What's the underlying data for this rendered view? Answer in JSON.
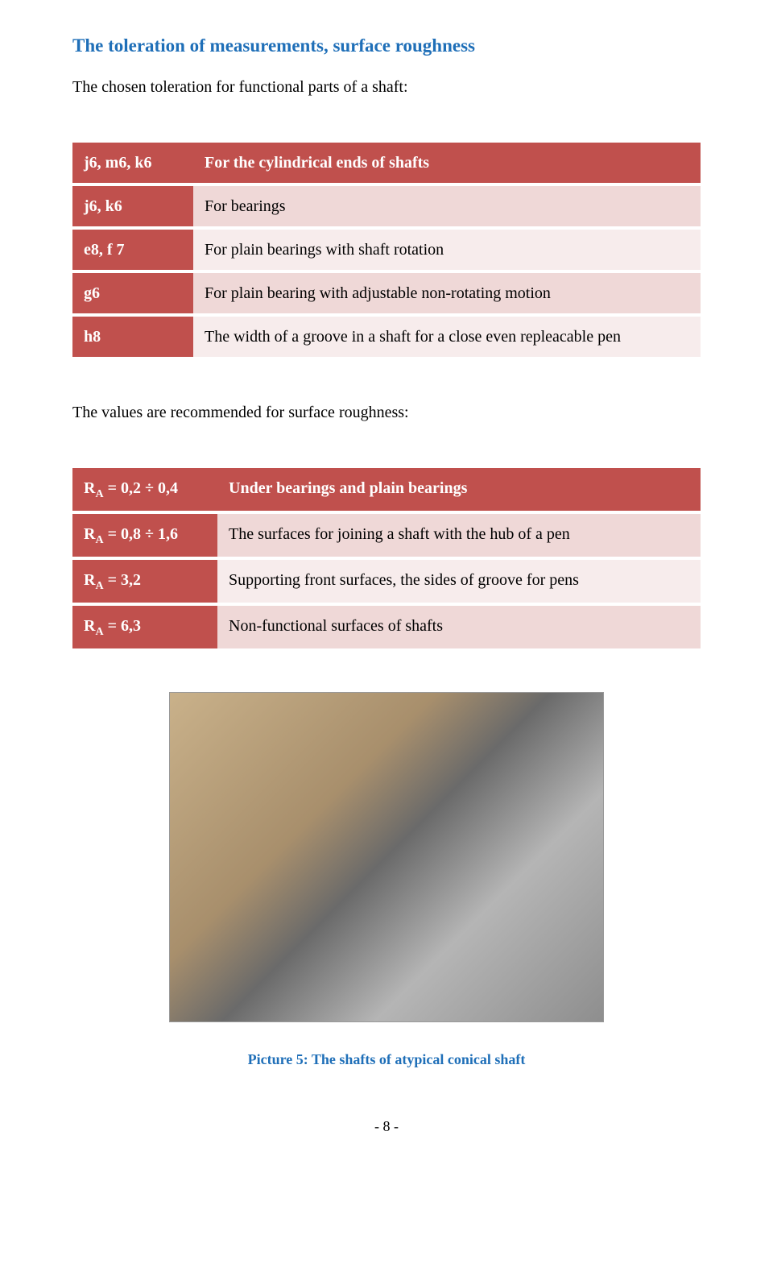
{
  "heading": "The toleration of measurements, surface roughness",
  "intro": "The chosen toleration for functional parts of a shaft:",
  "table1": {
    "header_bg": "#c0504d",
    "row_bg_light": "#efd8d7",
    "row_bg_lighter": "#f7ecec",
    "text_color": "#000000",
    "code_color": "#ffffff",
    "rows": [
      {
        "code": "j6, m6, k6",
        "desc": "For the cylindrical ends of shafts",
        "bold_desc": true,
        "bg": "#c0504d",
        "desc_bg": "#c0504d",
        "desc_color": "#ffffff"
      },
      {
        "code": "j6, k6",
        "desc": "For bearings",
        "bg": "#c0504d",
        "desc_bg": "#efd8d7",
        "desc_color": "#000000"
      },
      {
        "code": "e8, f 7",
        "desc": "For plain bearings with shaft rotation",
        "bg": "#c0504d",
        "desc_bg": "#f7ecec",
        "desc_color": "#000000"
      },
      {
        "code": "g6",
        "desc": "For plain bearing with adjustable non-rotating motion",
        "bg": "#c0504d",
        "desc_bg": "#efd8d7",
        "desc_color": "#000000"
      },
      {
        "code": "h8",
        "desc": "The width of a groove in a shaft for a close even repleacable pen",
        "bg": "#c0504d",
        "desc_bg": "#f7ecec",
        "desc_color": "#000000"
      }
    ]
  },
  "mid_text": "The values are recommended for surface roughness:",
  "table2": {
    "header_bg": "#c0504d",
    "rows": [
      {
        "ra_pre": "R",
        "ra_sub": "A",
        "ra_post": " = 0,2 ÷ 0,4",
        "desc": "Under bearings and plain bearings",
        "bold_desc": true,
        "bg": "#c0504d",
        "desc_bg": "#c0504d",
        "desc_color": "#ffffff"
      },
      {
        "ra_pre": "R",
        "ra_sub": "A",
        "ra_post": " = 0,8 ÷ 1,6",
        "desc": "The surfaces for joining a shaft with the hub of a pen",
        "bg": "#c0504d",
        "desc_bg": "#efd8d7",
        "desc_color": "#000000"
      },
      {
        "ra_pre": "R",
        "ra_sub": "A",
        "ra_post": " = 3,2",
        "desc": "Supporting front surfaces, the sides of groove for pens",
        "bg": "#c0504d",
        "desc_bg": "#f7ecec",
        "desc_color": "#000000"
      },
      {
        "ra_pre": "R",
        "ra_sub": "A",
        "ra_post": " = 6,3",
        "desc": "Non-functional surfaces of shafts",
        "bg": "#c0504d",
        "desc_bg": "#efd8d7",
        "desc_color": "#000000"
      }
    ]
  },
  "figure_caption": "Picture 5: The shafts of atypical conical shaft",
  "page_number": "- 8 -"
}
